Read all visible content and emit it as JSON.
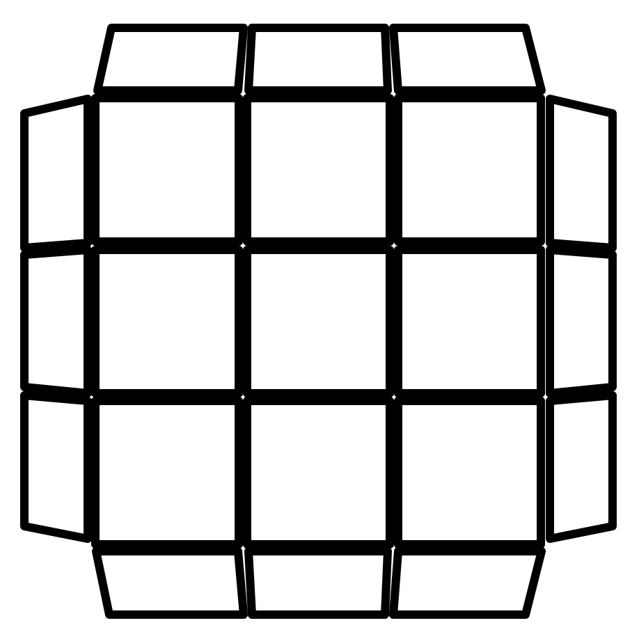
{
  "diagram": {
    "colors": {
      "background": "#ffffff",
      "sticker_fill": "#ffffff",
      "outline": "#000000"
    },
    "center_grid": {
      "rows": 3,
      "cols": 3
    },
    "side_rows": {
      "top": 3,
      "bottom": 3,
      "left": 3,
      "right": 3
    }
  }
}
